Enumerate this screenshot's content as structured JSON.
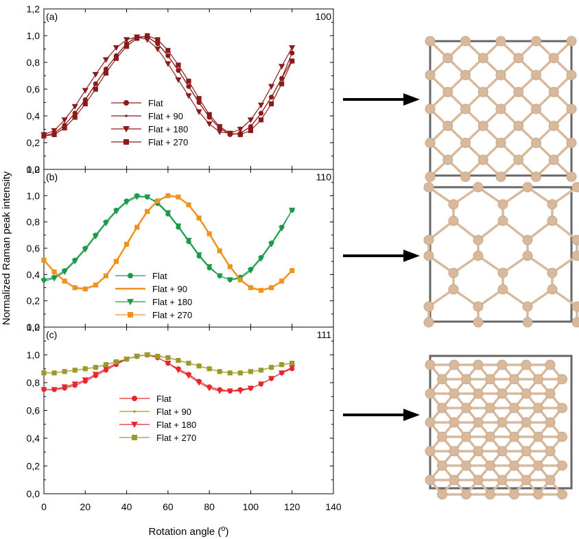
{
  "chart_data": [
    {
      "type": "line",
      "panel_label": "(a)",
      "corner_label": "100",
      "xlim": [
        0,
        140
      ],
      "ylim": [
        0,
        1.2
      ],
      "x_ticks": [
        "0",
        "20",
        "40",
        "60",
        "80",
        "100",
        "120",
        "140"
      ],
      "y_ticks": [
        "0,0",
        "0,2",
        "0,4",
        "0,6",
        "0,8",
        "1,0",
        "1,2"
      ],
      "series": [
        {
          "name": "Flat",
          "color": "#8b1a1a",
          "marker": "circle",
          "period": 90,
          "peak": 45,
          "min": 0.26,
          "x": [
            0,
            5,
            10,
            15,
            20,
            25,
            30,
            35,
            40,
            45,
            50,
            55,
            60,
            65,
            70,
            75,
            80,
            85,
            90,
            95,
            100,
            105,
            110,
            115,
            120
          ],
          "values": [
            0.25,
            0.27,
            0.33,
            0.42,
            0.52,
            0.64,
            0.75,
            0.85,
            0.94,
            0.99,
            0.99,
            0.94,
            0.85,
            0.74,
            0.62,
            0.5,
            0.39,
            0.31,
            0.26,
            0.27,
            0.32,
            0.42,
            0.54,
            0.68,
            0.87
          ]
        },
        {
          "name": "Flat + 90",
          "color": "#8b1a1a",
          "marker": "dot",
          "period": 90,
          "peak": 45,
          "min": 0.26,
          "x": [
            0,
            5,
            10,
            15,
            20,
            25,
            30,
            35,
            40,
            45,
            50,
            55,
            60,
            65,
            70,
            75,
            80,
            85,
            90,
            95,
            100,
            105,
            110,
            115,
            120
          ],
          "values": [
            0.25,
            0.27,
            0.33,
            0.42,
            0.52,
            0.64,
            0.75,
            0.85,
            0.94,
            0.99,
            0.99,
            0.94,
            0.85,
            0.74,
            0.62,
            0.5,
            0.39,
            0.31,
            0.26,
            0.27,
            0.32,
            0.42,
            0.54,
            0.68,
            0.82
          ]
        },
        {
          "name": "Flat + 180",
          "color": "#8b1a1a",
          "marker": "triangle-down",
          "period": 90,
          "peak": 45,
          "min": 0.26,
          "x": [
            0,
            5,
            10,
            15,
            20,
            25,
            30,
            35,
            40,
            45,
            50,
            55,
            60,
            65,
            70,
            75,
            80,
            85,
            90,
            95,
            100,
            105,
            110,
            115,
            120
          ],
          "values": [
            0.26,
            0.29,
            0.37,
            0.47,
            0.59,
            0.71,
            0.82,
            0.91,
            0.97,
            0.99,
            0.97,
            0.9,
            0.79,
            0.67,
            0.55,
            0.43,
            0.34,
            0.28,
            0.27,
            0.3,
            0.37,
            0.48,
            0.62,
            0.77,
            0.91
          ]
        },
        {
          "name": "Flat + 270",
          "color": "#8b1a1a",
          "marker": "square",
          "period": 90,
          "peak": 45,
          "min": 0.26,
          "x": [
            0,
            5,
            10,
            15,
            20,
            25,
            30,
            35,
            40,
            45,
            50,
            55,
            60,
            65,
            70,
            75,
            80,
            85,
            90,
            95,
            100,
            105,
            110,
            115,
            120
          ],
          "values": [
            0.25,
            0.26,
            0.31,
            0.39,
            0.49,
            0.6,
            0.72,
            0.83,
            0.92,
            0.98,
            1.0,
            0.97,
            0.89,
            0.78,
            0.66,
            0.53,
            0.41,
            0.32,
            0.27,
            0.26,
            0.29,
            0.37,
            0.49,
            0.64,
            0.81
          ]
        }
      ]
    },
    {
      "type": "line",
      "panel_label": "(b)",
      "corner_label": "110",
      "xlim": [
        0,
        140
      ],
      "ylim": [
        0,
        1.2
      ],
      "x_ticks": [
        "0",
        "20",
        "40",
        "60",
        "80",
        "100",
        "120",
        "140"
      ],
      "y_ticks": [
        "0,0",
        "0,2",
        "0,4",
        "0,6",
        "0,8",
        "1,0",
        "1,2"
      ],
      "series": [
        {
          "name": "Flat",
          "color": "#1a9a4a",
          "marker": "circle",
          "x": [
            0,
            5,
            10,
            15,
            20,
            25,
            30,
            35,
            40,
            45,
            50,
            55,
            60,
            65,
            70,
            75,
            80,
            85,
            90,
            95,
            100,
            105,
            110,
            115,
            120
          ],
          "values": [
            0.36,
            0.38,
            0.43,
            0.51,
            0.6,
            0.7,
            0.8,
            0.89,
            0.96,
            1.0,
            0.99,
            0.94,
            0.86,
            0.76,
            0.65,
            0.54,
            0.45,
            0.39,
            0.36,
            0.38,
            0.44,
            0.53,
            0.64,
            0.76,
            0.89
          ]
        },
        {
          "name": "Flat + 90",
          "color": "#f0921e",
          "marker": "none",
          "x": [
            0,
            5,
            10,
            15,
            20,
            25,
            30,
            35,
            40,
            45,
            50,
            55,
            60,
            65,
            70,
            75,
            80,
            85,
            90,
            95,
            100,
            105,
            110,
            115,
            120
          ],
          "values": [
            0.51,
            0.42,
            0.35,
            0.3,
            0.29,
            0.32,
            0.39,
            0.5,
            0.63,
            0.76,
            0.88,
            0.96,
            1.0,
            0.99,
            0.93,
            0.83,
            0.71,
            0.58,
            0.46,
            0.36,
            0.3,
            0.28,
            0.3,
            0.35,
            0.43
          ]
        },
        {
          "name": "Flat + 180",
          "color": "#1a9a4a",
          "marker": "triangle-down",
          "x": [
            0,
            5,
            10,
            15,
            20,
            25,
            30,
            35,
            40,
            45,
            50,
            55,
            60,
            65,
            70,
            75,
            80,
            85,
            90,
            95,
            100,
            105,
            110,
            115,
            120
          ],
          "values": [
            0.35,
            0.37,
            0.42,
            0.5,
            0.59,
            0.69,
            0.79,
            0.88,
            0.95,
            0.99,
            0.99,
            0.95,
            0.87,
            0.77,
            0.66,
            0.55,
            0.46,
            0.39,
            0.36,
            0.37,
            0.43,
            0.52,
            0.63,
            0.75,
            0.89
          ]
        },
        {
          "name": "Flat + 270",
          "color": "#f0921e",
          "marker": "square",
          "x": [
            0,
            5,
            10,
            15,
            20,
            25,
            30,
            35,
            40,
            45,
            50,
            55,
            60,
            65,
            70,
            75,
            80,
            85,
            90,
            95,
            100,
            105,
            110,
            115,
            120
          ],
          "values": [
            0.51,
            0.42,
            0.35,
            0.3,
            0.29,
            0.32,
            0.39,
            0.5,
            0.63,
            0.76,
            0.88,
            0.96,
            1.0,
            0.99,
            0.93,
            0.83,
            0.71,
            0.58,
            0.46,
            0.36,
            0.3,
            0.28,
            0.3,
            0.35,
            0.43
          ]
        }
      ]
    },
    {
      "type": "line",
      "panel_label": "(c)",
      "corner_label": "111",
      "xlim": [
        0,
        140
      ],
      "ylim": [
        0,
        1.2
      ],
      "x_ticks": [
        "0",
        "20",
        "40",
        "60",
        "80",
        "100",
        "120",
        "140"
      ],
      "y_ticks": [
        "0,0",
        "0,2",
        "0,4",
        "0,6",
        "0,8",
        "1,0",
        "1,2"
      ],
      "series": [
        {
          "name": "Flat",
          "color": "#e8262b",
          "marker": "circle",
          "x": [
            0,
            5,
            10,
            15,
            20,
            25,
            30,
            35,
            40,
            45,
            50,
            55,
            60,
            65,
            70,
            75,
            80,
            85,
            90,
            95,
            100,
            105,
            110,
            115,
            120
          ],
          "values": [
            0.75,
            0.75,
            0.76,
            0.78,
            0.81,
            0.85,
            0.89,
            0.93,
            0.97,
            0.99,
            1.0,
            0.98,
            0.94,
            0.9,
            0.86,
            0.81,
            0.77,
            0.75,
            0.74,
            0.75,
            0.76,
            0.79,
            0.83,
            0.87,
            0.9
          ]
        },
        {
          "name": "Flat + 90",
          "color": "#9a9a2a",
          "marker": "dot",
          "x": [
            0,
            5,
            10,
            15,
            20,
            25,
            30,
            35,
            40,
            45,
            50,
            55,
            60,
            65,
            70,
            75,
            80,
            85,
            90,
            95,
            100,
            105,
            110,
            115,
            120
          ],
          "values": [
            0.87,
            0.87,
            0.88,
            0.89,
            0.9,
            0.91,
            0.93,
            0.95,
            0.97,
            0.99,
            1.0,
            0.99,
            0.98,
            0.96,
            0.94,
            0.92,
            0.9,
            0.88,
            0.87,
            0.87,
            0.88,
            0.89,
            0.91,
            0.93,
            0.94
          ]
        },
        {
          "name": "Flat + 180",
          "color": "#e8262b",
          "marker": "triangle-down",
          "x": [
            0,
            5,
            10,
            15,
            20,
            25,
            30,
            35,
            40,
            45,
            50,
            55,
            60,
            65,
            70,
            75,
            80,
            85,
            90,
            95,
            100,
            105,
            110,
            115,
            120
          ],
          "values": [
            0.75,
            0.75,
            0.77,
            0.79,
            0.82,
            0.86,
            0.9,
            0.94,
            0.97,
            0.99,
            1.0,
            0.98,
            0.94,
            0.89,
            0.85,
            0.8,
            0.76,
            0.74,
            0.74,
            0.74,
            0.76,
            0.79,
            0.83,
            0.87,
            0.91
          ]
        },
        {
          "name": "Flat + 270",
          "color": "#9a9a2a",
          "marker": "square",
          "x": [
            0,
            5,
            10,
            15,
            20,
            25,
            30,
            35,
            40,
            45,
            50,
            55,
            60,
            65,
            70,
            75,
            80,
            85,
            90,
            95,
            100,
            105,
            110,
            115,
            120
          ],
          "values": [
            0.87,
            0.87,
            0.88,
            0.89,
            0.9,
            0.91,
            0.93,
            0.95,
            0.97,
            0.99,
            1.0,
            0.99,
            0.98,
            0.96,
            0.94,
            0.92,
            0.9,
            0.88,
            0.87,
            0.87,
            0.88,
            0.89,
            0.91,
            0.93,
            0.94
          ]
        }
      ]
    }
  ],
  "axes": {
    "ylabel": "Normalized Raman peak intensity",
    "xlabel_text": "Rotation angle (",
    "xlabel_sup": "o",
    "xlabel_close": ")"
  },
  "structures": [
    {
      "name": "100 lattice view",
      "atom_color": "#d9b99b",
      "frame_color": "#666666"
    },
    {
      "name": "110 lattice view",
      "atom_color": "#d9b99b",
      "frame_color": "#666666"
    },
    {
      "name": "111 lattice view",
      "atom_color": "#d9b99b",
      "frame_color": "#666666"
    }
  ]
}
